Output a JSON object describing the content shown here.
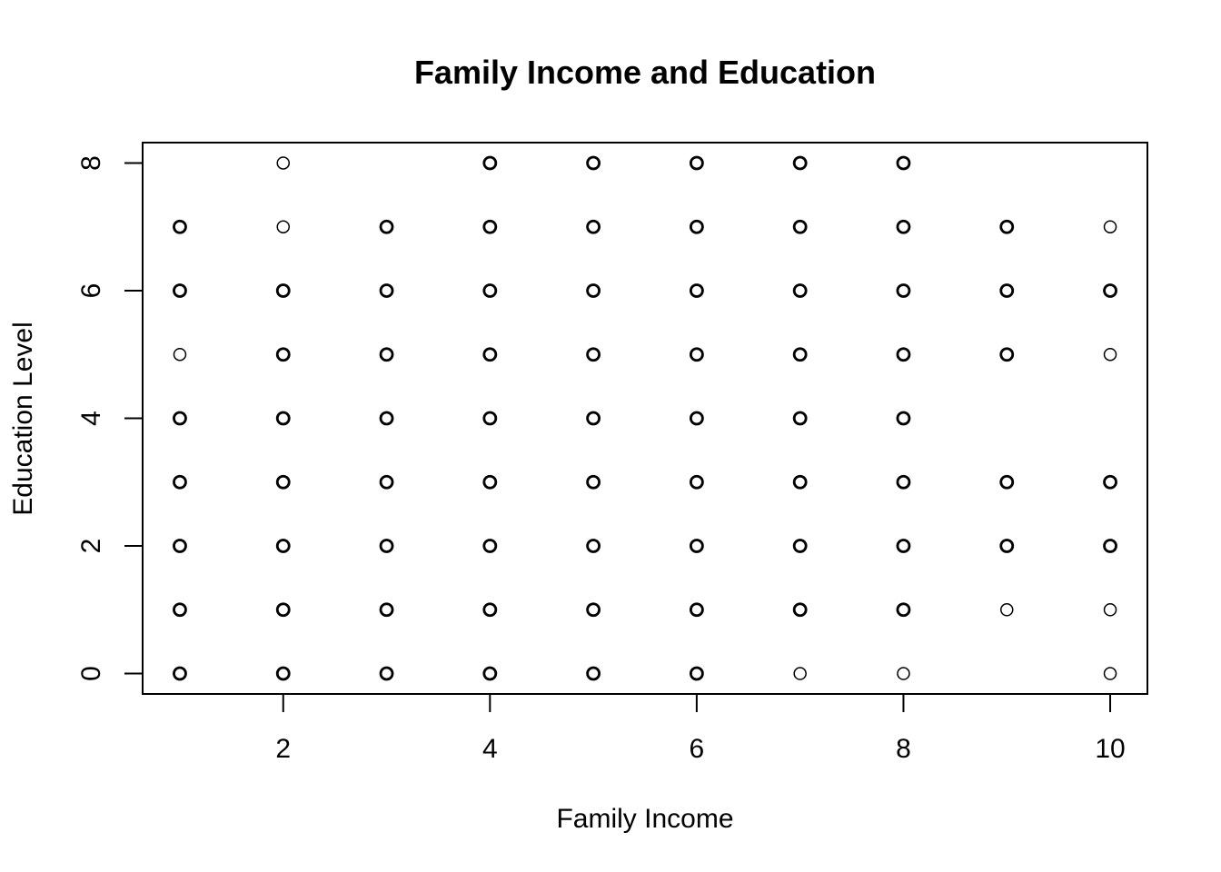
{
  "chart_data": {
    "type": "scatter",
    "title": "Family Income and Education",
    "xlabel": "Family Income",
    "ylabel": "Education Level",
    "xlim": [
      0.64,
      10.36
    ],
    "ylim": [
      -0.32,
      8.32
    ],
    "xticks": [
      2,
      4,
      6,
      8,
      10
    ],
    "yticks": [
      0,
      2,
      4,
      6,
      8
    ],
    "grid": false,
    "marker": "open-circle",
    "colors": {
      "points": "#000000",
      "axes": "#000000",
      "background": "#ffffff"
    },
    "points": {
      "1": {
        "y": [
          0,
          1,
          2,
          3,
          4,
          5,
          6,
          7
        ],
        "heavy": [
          0,
          1,
          2,
          3,
          4,
          6,
          7
        ]
      },
      "2": {
        "y": [
          0,
          1,
          2,
          3,
          4,
          5,
          6,
          7,
          8
        ],
        "heavy": [
          0,
          1,
          2,
          3,
          4,
          5,
          6
        ]
      },
      "3": {
        "y": [
          0,
          1,
          2,
          3,
          4,
          5,
          6,
          7
        ],
        "heavy": [
          0,
          1,
          2,
          3,
          4,
          5,
          6,
          7
        ]
      },
      "4": {
        "y": [
          0,
          1,
          2,
          3,
          4,
          5,
          6,
          7,
          8
        ],
        "heavy": [
          0,
          1,
          2,
          3,
          4,
          5,
          6,
          7,
          8
        ]
      },
      "5": {
        "y": [
          0,
          1,
          2,
          3,
          4,
          5,
          6,
          7,
          8
        ],
        "heavy": [
          0,
          1,
          2,
          3,
          4,
          5,
          6,
          7,
          8
        ]
      },
      "6": {
        "y": [
          0,
          1,
          2,
          3,
          4,
          5,
          6,
          7,
          8
        ],
        "heavy": [
          0,
          1,
          2,
          3,
          4,
          5,
          6,
          7,
          8
        ]
      },
      "7": {
        "y": [
          0,
          1,
          2,
          3,
          4,
          5,
          6,
          7,
          8
        ],
        "heavy": [
          1,
          2,
          3,
          4,
          5,
          6,
          7,
          8
        ]
      },
      "8": {
        "y": [
          0,
          1,
          2,
          3,
          4,
          5,
          6,
          7,
          8
        ],
        "heavy": [
          1,
          2,
          3,
          4,
          5,
          6,
          7,
          8
        ]
      },
      "9": {
        "y": [
          1,
          2,
          3,
          5,
          6,
          7
        ],
        "heavy": [
          2,
          3,
          5,
          6,
          7
        ]
      },
      "10": {
        "y": [
          0,
          1,
          2,
          3,
          5,
          6,
          7
        ],
        "heavy": [
          2,
          3,
          6
        ]
      }
    }
  }
}
